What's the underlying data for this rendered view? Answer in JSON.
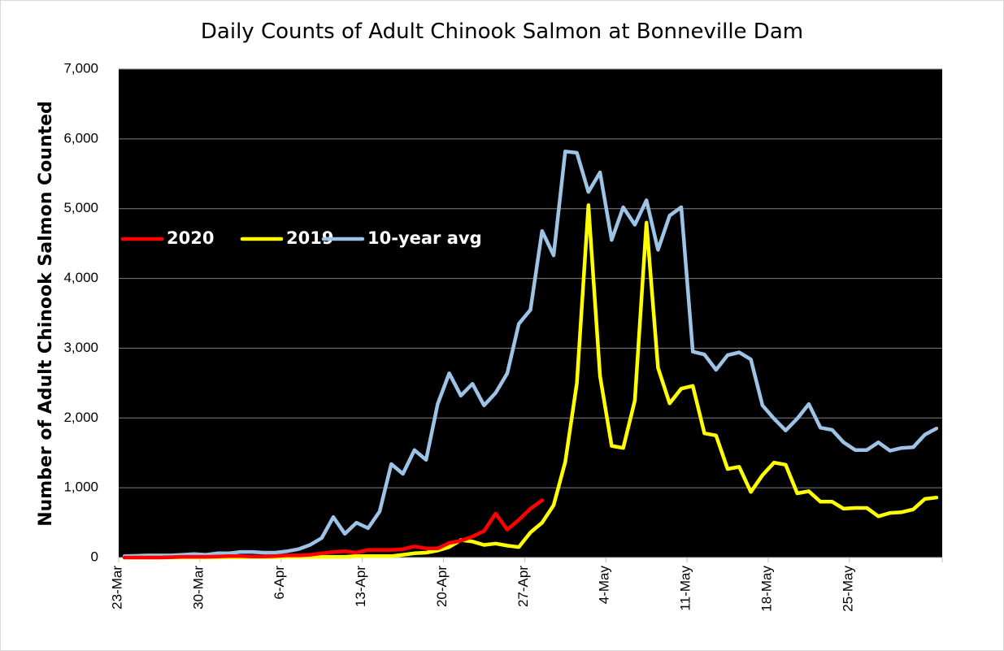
{
  "chart_data": {
    "type": "line",
    "title": "Daily Counts of Adult Chinook Salmon at Bonneville Dam",
    "xlabel": "",
    "ylabel": "Number of Adult Chinook Salmon Counted",
    "ylim": [
      0,
      7000
    ],
    "yticks": [
      "0",
      "1,000",
      "2,000",
      "3,000",
      "4,000",
      "5,000",
      "6,000",
      "7,000"
    ],
    "x_start": "23-Mar",
    "x_tick_labels": [
      "23-Mar",
      "30-Mar",
      "6-Apr",
      "13-Apr",
      "20-Apr",
      "27-Apr",
      "4-May",
      "11-May",
      "18-May",
      "25-May"
    ],
    "grid": "horizontal",
    "legend_position": "left-middle",
    "background": "#000000",
    "series": [
      {
        "name": "2020",
        "color": "#ff0000",
        "values": [
          0,
          0,
          0,
          0,
          5,
          10,
          10,
          10,
          15,
          20,
          20,
          15,
          15,
          20,
          30,
          30,
          40,
          60,
          80,
          90,
          70,
          110,
          110,
          110,
          120,
          160,
          130,
          130,
          210,
          240,
          300,
          380,
          630,
          400,
          540,
          700,
          820
        ]
      },
      {
        "name": "2019",
        "color": "#ffff00",
        "values": [
          0,
          0,
          0,
          0,
          0,
          0,
          0,
          0,
          0,
          5,
          5,
          5,
          5,
          5,
          10,
          10,
          10,
          10,
          10,
          10,
          20,
          20,
          20,
          20,
          40,
          60,
          70,
          100,
          150,
          250,
          230,
          180,
          200,
          170,
          150,
          360,
          500,
          750,
          1370,
          2500,
          5050,
          2600,
          1600,
          1570,
          2250,
          4800,
          2720,
          2210,
          2420,
          2460,
          1780,
          1750,
          1270,
          1300,
          940,
          1180,
          1360,
          1330,
          920,
          950,
          800,
          800,
          700,
          710,
          710,
          590,
          640,
          650,
          690,
          840,
          860
        ]
      },
      {
        "name": "10-year avg",
        "color": "#9dc3e6",
        "values": [
          20,
          25,
          30,
          30,
          30,
          40,
          50,
          40,
          60,
          60,
          80,
          80,
          70,
          70,
          90,
          120,
          180,
          280,
          580,
          340,
          500,
          420,
          660,
          1340,
          1200,
          1540,
          1400,
          2200,
          2640,
          2320,
          2490,
          2180,
          2360,
          2640,
          3350,
          3550,
          4680,
          4330,
          5820,
          5800,
          5240,
          5520,
          4550,
          5020,
          4770,
          5120,
          4410,
          4900,
          5020,
          2950,
          2910,
          2690,
          2900,
          2940,
          2840,
          2180,
          1990,
          1820,
          1990,
          2200,
          1860,
          1830,
          1650,
          1540,
          1540,
          1650,
          1530,
          1570,
          1580,
          1760,
          1850
        ]
      }
    ]
  }
}
